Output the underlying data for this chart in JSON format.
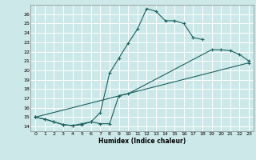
{
  "xlabel": "Humidex (Indice chaleur)",
  "bg_color": "#cce8e8",
  "grid_color": "#ffffff",
  "line_color": "#1a6060",
  "xlim": [
    -0.5,
    23.5
  ],
  "ylim": [
    13.5,
    27.0
  ],
  "xticks": [
    0,
    1,
    2,
    3,
    4,
    5,
    6,
    7,
    8,
    9,
    10,
    11,
    12,
    13,
    14,
    15,
    16,
    17,
    18,
    19,
    20,
    21,
    22,
    23
  ],
  "yticks": [
    14,
    15,
    16,
    17,
    18,
    19,
    20,
    21,
    22,
    23,
    24,
    25,
    26
  ],
  "line1_x": [
    0,
    1,
    2,
    3,
    4,
    5,
    6,
    7,
    8,
    9,
    10,
    11,
    12,
    13,
    14,
    15,
    16,
    17,
    18
  ],
  "line1_y": [
    15.0,
    14.8,
    14.5,
    14.2,
    14.1,
    14.3,
    14.5,
    15.5,
    19.7,
    21.3,
    22.9,
    24.4,
    26.6,
    26.3,
    25.3,
    25.3,
    25.0,
    23.5,
    23.3
  ],
  "line2_x": [
    0,
    1,
    2,
    3,
    4,
    5,
    6,
    7,
    8,
    9,
    10,
    19,
    20,
    21,
    22,
    23
  ],
  "line2_y": [
    15.0,
    14.8,
    14.5,
    14.2,
    14.1,
    14.2,
    14.5,
    14.3,
    14.3,
    17.3,
    17.5,
    22.2,
    22.2,
    22.1,
    21.7,
    21.0
  ],
  "line3_x": [
    0,
    23
  ],
  "line3_y": [
    15.0,
    20.8
  ]
}
